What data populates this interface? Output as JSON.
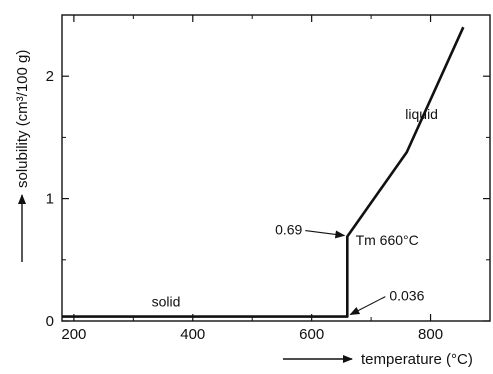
{
  "chart_data": {
    "type": "line",
    "xlabel": "temperature (°C)",
    "ylabel": "solubility (cm³/100 g)",
    "xlim": [
      180,
      900
    ],
    "ylim": [
      0,
      2.5
    ],
    "x_ticks": [
      {
        "value": 200,
        "label": "200"
      },
      {
        "value": 400,
        "label": "400"
      },
      {
        "value": 600,
        "label": "600"
      },
      {
        "value": 800,
        "label": "800"
      }
    ],
    "y_ticks": [
      {
        "value": 0,
        "label": "0"
      },
      {
        "value": 1,
        "label": "1"
      },
      {
        "value": 2,
        "label": "2"
      }
    ],
    "series": [
      {
        "points": [
          {
            "x": 180,
            "y": 0.036
          },
          {
            "x": 660,
            "y": 0.036
          },
          {
            "x": 660,
            "y": 0.69
          },
          {
            "x": 760,
            "y": 1.38
          },
          {
            "x": 855,
            "y": 2.4
          }
        ]
      }
    ],
    "annotations": [
      {
        "id": "solid",
        "text": "solid",
        "x": 355,
        "y": 0.12
      },
      {
        "id": "liquid",
        "text": "liquid",
        "x": 785,
        "y": 1.65
      },
      {
        "id": "tm",
        "text": "Tm 660°C",
        "x": 727,
        "y": 0.62
      }
    ],
    "callouts": [
      {
        "id": "val-069",
        "text": "0.69",
        "target": {
          "x": 660,
          "y": 0.69
        }
      },
      {
        "id": "val-0036",
        "text": "0.036",
        "target": {
          "x": 660,
          "y": 0.036
        }
      }
    ],
    "grid": false
  }
}
